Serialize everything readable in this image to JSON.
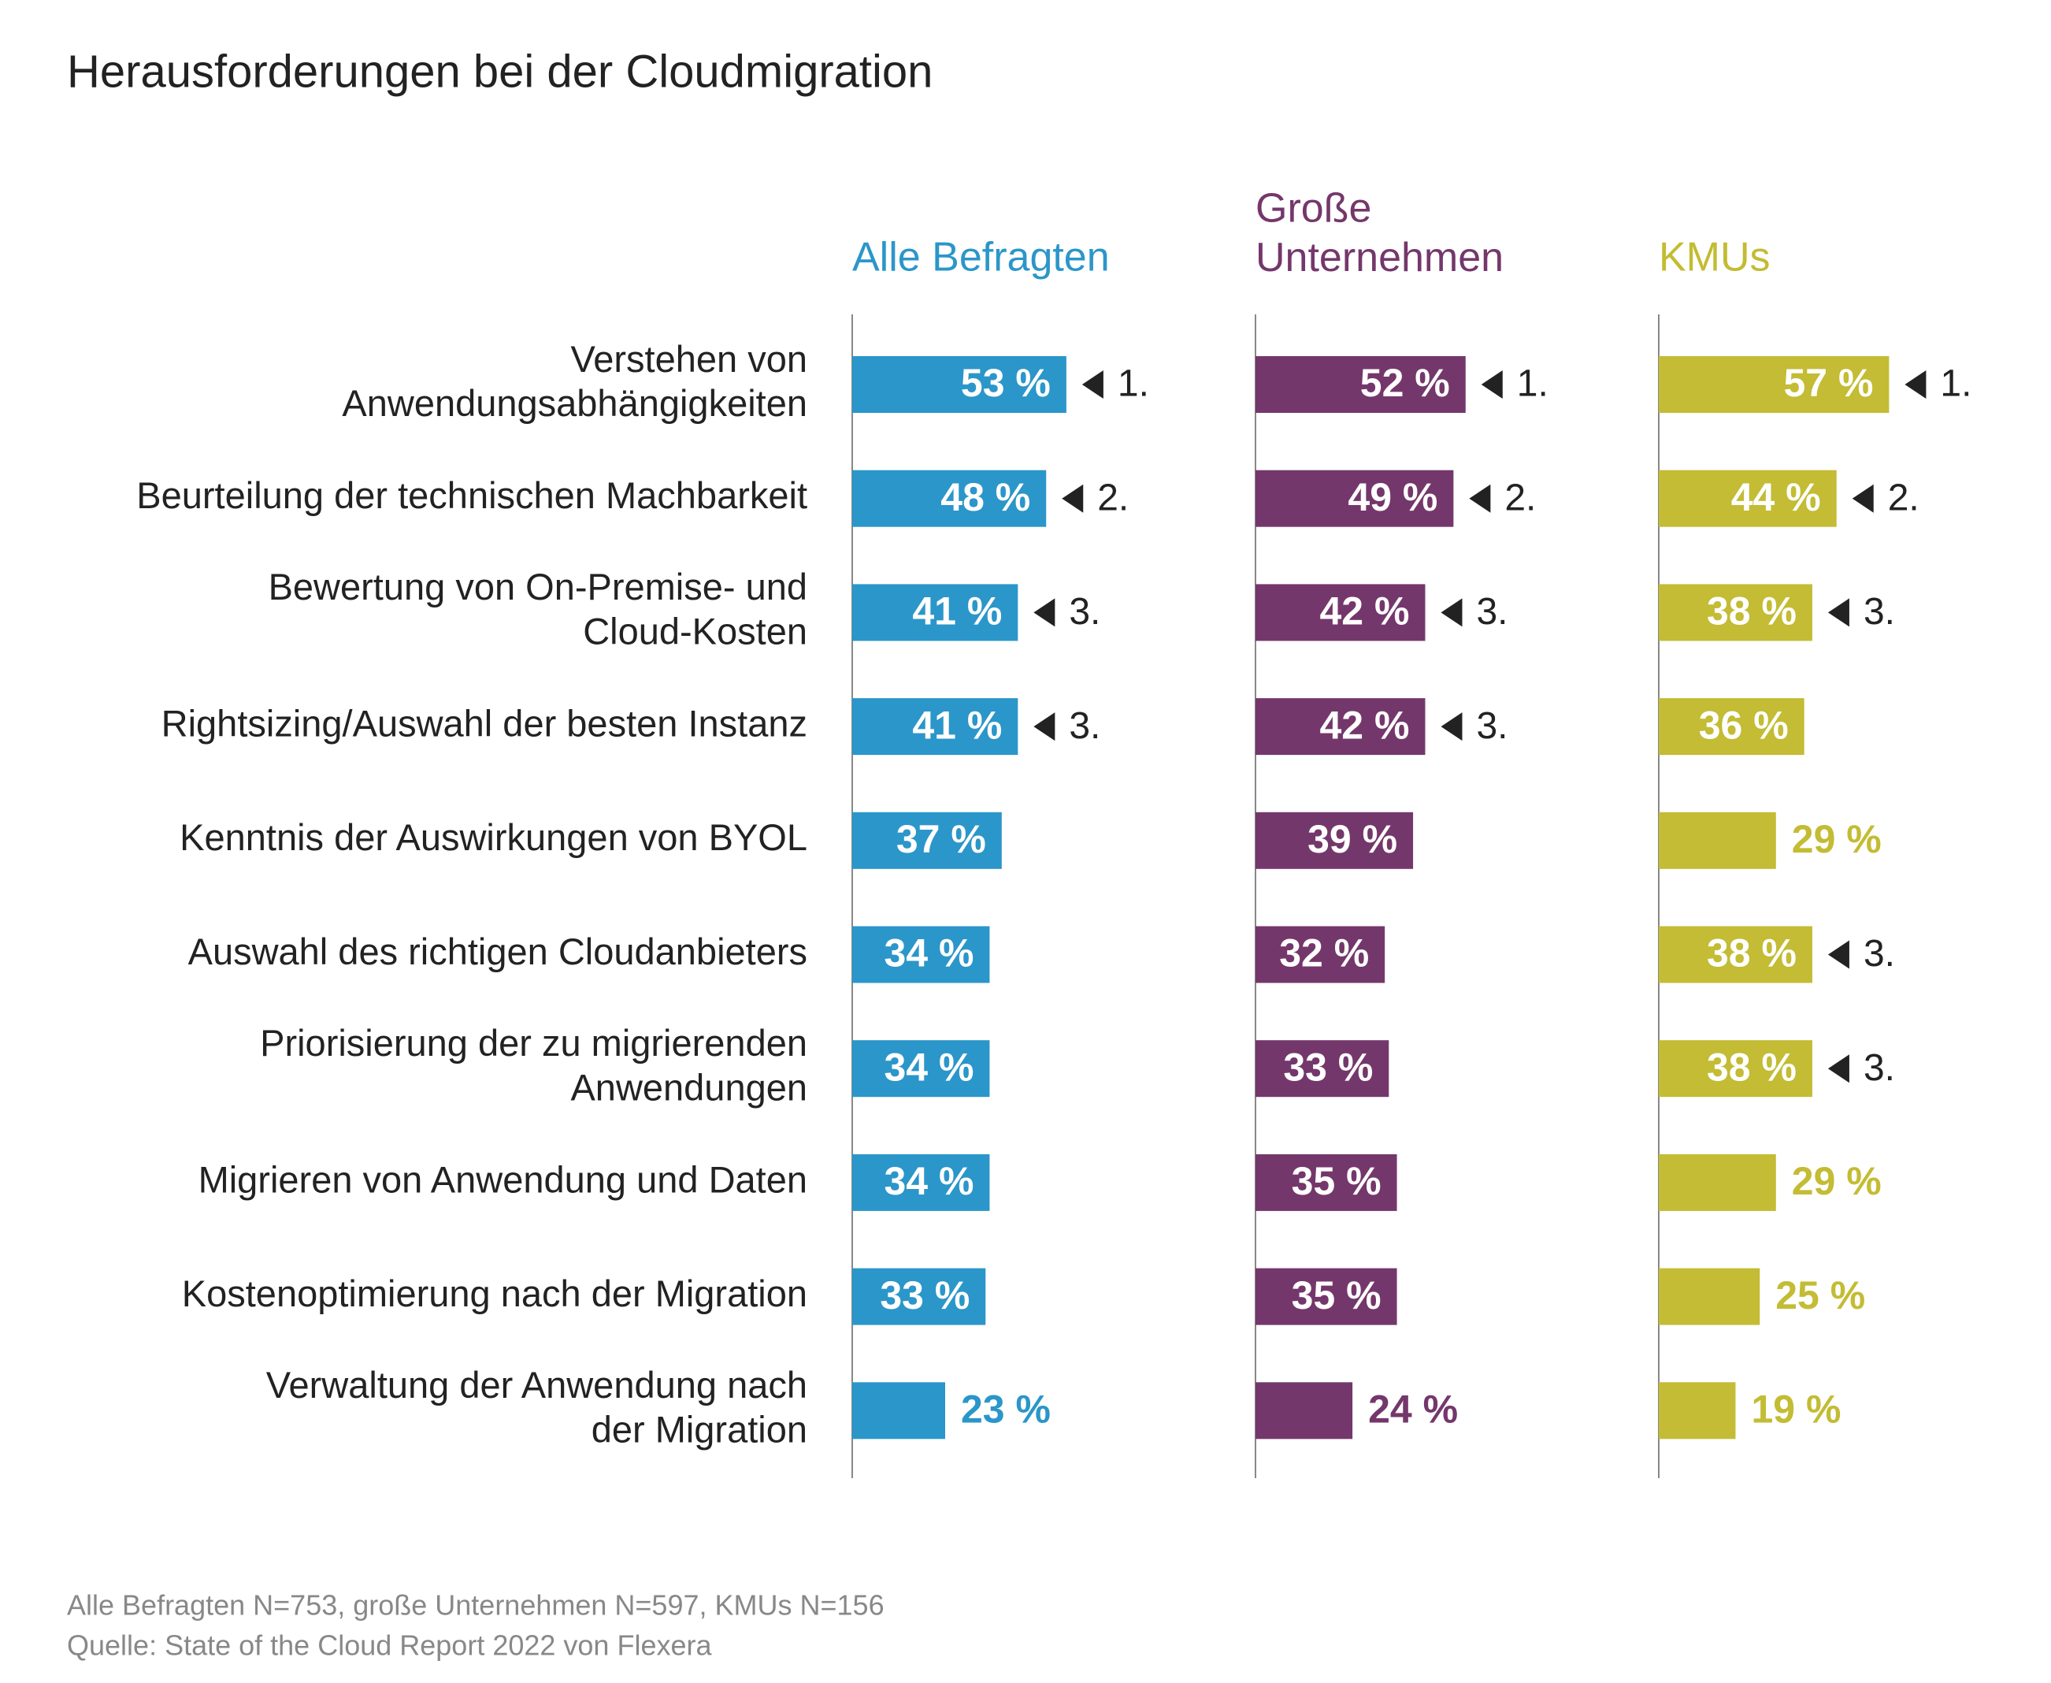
{
  "chart_data": {
    "type": "bar",
    "title": "Herausforderungen bei der Cloudmigration",
    "categories": [
      "Verstehen von\nAnwendungsabhängigkeiten",
      "Beurteilung der technischen Machbarkeit",
      "Bewertung von On-Premise- und\nCloud-Kosten",
      "Rightsizing/Auswahl der besten Instanz",
      "Kenntnis der Auswirkungen von BYOL",
      "Auswahl des richtigen Cloudanbieters",
      "Priorisierung der zu migrierenden\nAnwendungen",
      "Migrieren von Anwendung und Daten",
      "Kostenoptimierung nach der Migration",
      "Verwaltung der Anwendung nach\nder Migration"
    ],
    "series": [
      {
        "name": "Alle Befragten",
        "color": "#2b96c9",
        "values": [
          53,
          48,
          41,
          41,
          37,
          34,
          34,
          34,
          33,
          23
        ],
        "value_labels": [
          "53 %",
          "48 %",
          "41 %",
          "41 %",
          "37 %",
          "34 %",
          "34 %",
          "34 %",
          "33 %",
          "23 %"
        ],
        "rank_labels": [
          "1.",
          "2.",
          "3.",
          "3.",
          null,
          null,
          null,
          null,
          null,
          null
        ]
      },
      {
        "name": "Große\nUnternehmen",
        "color": "#74376b",
        "values": [
          52,
          49,
          42,
          42,
          39,
          32,
          33,
          35,
          35,
          24
        ],
        "value_labels": [
          "52 %",
          "49 %",
          "42 %",
          "42 %",
          "39 %",
          "32 %",
          "33 %",
          "35 %",
          "35 %",
          "24 %"
        ],
        "rank_labels": [
          "1.",
          "2.",
          "3.",
          "3.",
          null,
          null,
          null,
          null,
          null,
          null
        ]
      },
      {
        "name": "KMUs",
        "color": "#c3bc34",
        "values": [
          57,
          44,
          38,
          36,
          29,
          38,
          38,
          29,
          25,
          19
        ],
        "value_labels": [
          "57 %",
          "44 %",
          "38 %",
          "36 %",
          "29 %",
          "38 %",
          "38 %",
          "29 %",
          "25 %",
          "19 %"
        ],
        "rank_labels": [
          "1.",
          "2.",
          "3.",
          null,
          null,
          "3.",
          "3.",
          null,
          null,
          null
        ]
      }
    ],
    "notes": [
      "Alle Befragten N=753, große Unternehmen N=597, KMUs N=156",
      "Quelle: State of the Cloud Report 2022 von Flexera"
    ]
  }
}
